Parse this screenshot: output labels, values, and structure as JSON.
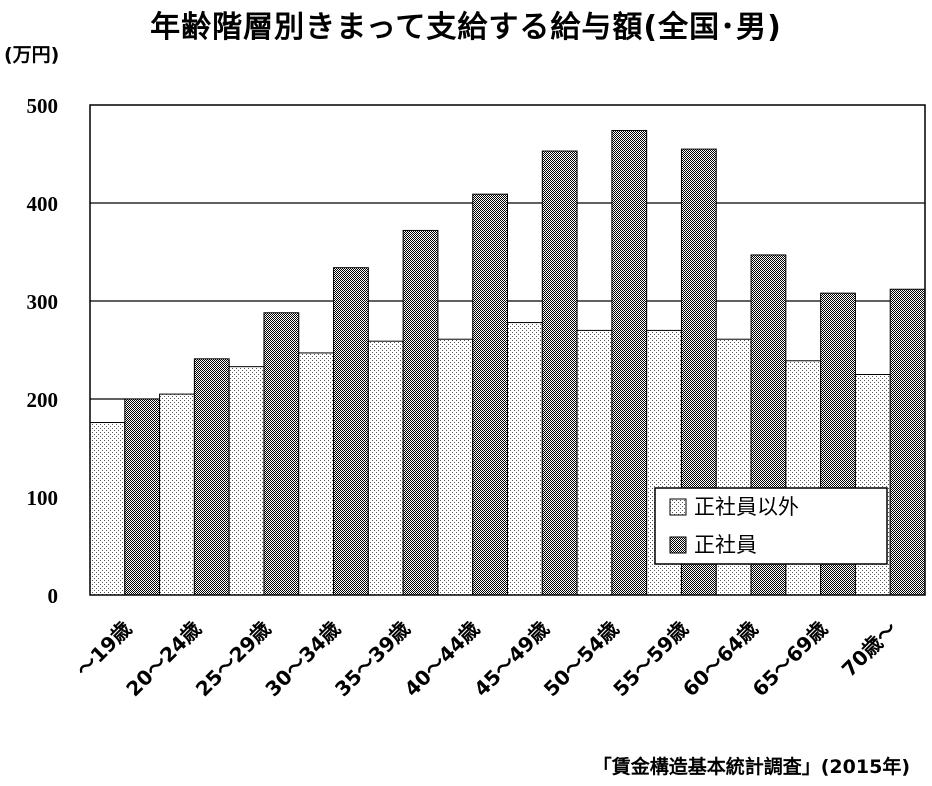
{
  "title": "年齢階層別きまって支給する給与額(全国･男)",
  "unit": "(万円)",
  "source": "「賃金構造基本統計調査」(2015年)",
  "chart_data": {
    "type": "bar",
    "categories": [
      "～19歳",
      "20～24歳",
      "25～29歳",
      "30～34歳",
      "35～39歳",
      "40～44歳",
      "45～49歳",
      "50～54歳",
      "55～59歳",
      "60～64歳",
      "65～69歳",
      "70歳～"
    ],
    "series": [
      {
        "name": "正社員以外",
        "values": [
          176,
          205,
          233,
          247,
          259,
          261,
          278,
          270,
          270,
          261,
          239,
          225
        ],
        "color": "#e4e4e4"
      },
      {
        "name": "正社員",
        "values": [
          200,
          241,
          288,
          334,
          372,
          409,
          453,
          474,
          455,
          347,
          308,
          312
        ],
        "color": "#8c8c8c"
      }
    ],
    "ylim": [
      0,
      500
    ],
    "yticks": [
      0,
      100,
      200,
      300,
      400,
      500
    ],
    "grid": true,
    "legend": "bottom-right"
  }
}
